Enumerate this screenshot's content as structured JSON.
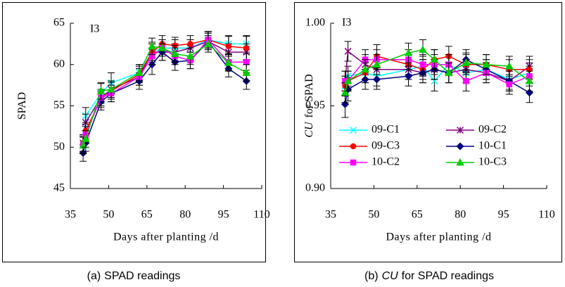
{
  "chart_data": [
    {
      "type": "line",
      "title": "I3",
      "xlabel": "Days after planting /d",
      "ylabel": [
        "SPAD"
      ],
      "caption": [
        "(a)",
        "SPAD readings"
      ],
      "xlim": [
        35,
        110
      ],
      "xticks": [
        35,
        50,
        65,
        80,
        95,
        110
      ],
      "ylim": [
        45,
        65
      ],
      "yticks": [
        45,
        50,
        55,
        60,
        65
      ],
      "x": [
        40,
        41,
        47,
        51,
        62,
        67,
        71,
        76,
        82,
        89,
        97,
        104
      ],
      "series": [
        {
          "color": "#00ffff",
          "marker": "x",
          "values": [
            50.5,
            53.8,
            56.5,
            57.8,
            59,
            61.5,
            62,
            62,
            62,
            63,
            62.5,
            62.5
          ],
          "errors": [
            1,
            1,
            1.2,
            1.2,
            1,
            1,
            1,
            1,
            1,
            1,
            1,
            1
          ]
        },
        {
          "color": "#800080",
          "marker": "star",
          "values": [
            50.5,
            53,
            56,
            57,
            58.5,
            61.5,
            61.5,
            61.5,
            62,
            62.8,
            61.5,
            61.5
          ],
          "errors": [
            1,
            1,
            1,
            1,
            1,
            1,
            1,
            1,
            1,
            1,
            1,
            1
          ]
        },
        {
          "color": "#ff0000",
          "marker": "circle",
          "values": [
            50.5,
            52,
            55.8,
            56.8,
            58.8,
            61.5,
            62.5,
            62.3,
            62.5,
            63,
            62.2,
            62
          ],
          "errors": [
            1,
            1,
            1,
            1,
            1,
            1.2,
            1,
            1,
            1,
            1,
            1.2,
            1.4
          ]
        },
        {
          "color": "#000080",
          "marker": "diamond",
          "values": [
            49.3,
            50.5,
            55.5,
            56.5,
            58,
            60,
            61.5,
            60.3,
            60.5,
            62.8,
            59.5,
            58
          ],
          "errors": [
            1,
            1,
            1,
            1,
            1,
            1.2,
            1,
            1,
            1,
            1,
            1,
            1
          ]
        },
        {
          "color": "#ff00ff",
          "marker": "square",
          "values": [
            50.3,
            51.5,
            56,
            56.5,
            58.5,
            61,
            62,
            61,
            60.5,
            63,
            60.3,
            60.3
          ],
          "errors": [
            1,
            1,
            1,
            1,
            1,
            1,
            1,
            1,
            1,
            1,
            1,
            1
          ]
        },
        {
          "color": "#00cc00",
          "marker": "triangle",
          "values": [
            50.2,
            51,
            56.8,
            57,
            59,
            62.2,
            62,
            61.3,
            61,
            62.5,
            60.2,
            59
          ],
          "errors": [
            1,
            1,
            1,
            1,
            1,
            1,
            1,
            1,
            1,
            1,
            1,
            1
          ]
        }
      ]
    },
    {
      "type": "line",
      "title": "I3",
      "xlabel": "Days after planting /d",
      "ylabel": [
        "CU",
        "for SPAD"
      ],
      "caption": [
        "(b)",
        "CU",
        "for SPAD readings"
      ],
      "xlim": [
        35,
        110
      ],
      "xticks": [
        35,
        50,
        65,
        80,
        95,
        110
      ],
      "ylim": [
        0.9,
        1.0
      ],
      "yticks": [
        {
          "value": 0.9,
          "label": "0.90"
        },
        {
          "value": 0.95,
          "label": "0.95"
        },
        {
          "value": 1.0,
          "label": "1.00"
        }
      ],
      "x": [
        40,
        41,
        47,
        51,
        62,
        67,
        71,
        76,
        82,
        89,
        97,
        104
      ],
      "legend_columns": 2,
      "series": [
        {
          "name": "09-C1",
          "color": "#00ffff",
          "marker": "x",
          "values": [
            0.962,
            0.968,
            0.97,
            0.968,
            0.972,
            0.974,
            0.965,
            0.975,
            0.97,
            0.972,
            0.966,
            0.97
          ],
          "errors": [
            0.006,
            0.006,
            0.006,
            0.006,
            0.006,
            0.006,
            0.006,
            0.006,
            0.006,
            0.006,
            0.006,
            0.006
          ]
        },
        {
          "name": "09-C2",
          "color": "#800080",
          "marker": "star",
          "values": [
            0.965,
            0.983,
            0.975,
            0.972,
            0.972,
            0.97,
            0.972,
            0.97,
            0.972,
            0.97,
            0.965,
            0.974
          ],
          "errors": [
            0.006,
            0.006,
            0.006,
            0.006,
            0.006,
            0.006,
            0.006,
            0.006,
            0.006,
            0.006,
            0.006,
            0.006
          ]
        },
        {
          "name": "09-C3",
          "color": "#ff0000",
          "marker": "circle",
          "values": [
            0.962,
            0.965,
            0.97,
            0.98,
            0.975,
            0.972,
            0.978,
            0.98,
            0.975,
            0.975,
            0.972,
            0.972
          ],
          "errors": [
            0.006,
            0.006,
            0.006,
            0.007,
            0.006,
            0.006,
            0.006,
            0.006,
            0.006,
            0.006,
            0.006,
            0.006
          ]
        },
        {
          "name": "10-C1",
          "color": "#000080",
          "marker": "diamond",
          "values": [
            0.951,
            0.96,
            0.966,
            0.966,
            0.968,
            0.97,
            0.972,
            0.97,
            0.978,
            0.972,
            0.965,
            0.958
          ],
          "errors": [
            0.008,
            0.007,
            0.006,
            0.006,
            0.006,
            0.006,
            0.006,
            0.006,
            0.006,
            0.006,
            0.006,
            0.006
          ]
        },
        {
          "name": "10-C2",
          "color": "#ff00ff",
          "marker": "square",
          "values": [
            0.965,
            0.965,
            0.978,
            0.978,
            0.978,
            0.975,
            0.975,
            0.975,
            0.965,
            0.97,
            0.963,
            0.968
          ],
          "errors": [
            0.006,
            0.006,
            0.006,
            0.006,
            0.006,
            0.006,
            0.006,
            0.006,
            0.006,
            0.006,
            0.006,
            0.006
          ]
        },
        {
          "name": "10-C3",
          "color": "#00cc00",
          "marker": "triangle",
          "values": [
            0.958,
            0.965,
            0.972,
            0.975,
            0.982,
            0.984,
            0.978,
            0.97,
            0.976,
            0.975,
            0.974,
            0.965
          ],
          "errors": [
            0.006,
            0.006,
            0.006,
            0.006,
            0.006,
            0.006,
            0.006,
            0.006,
            0.006,
            0.006,
            0.006,
            0.006
          ]
        }
      ]
    }
  ]
}
